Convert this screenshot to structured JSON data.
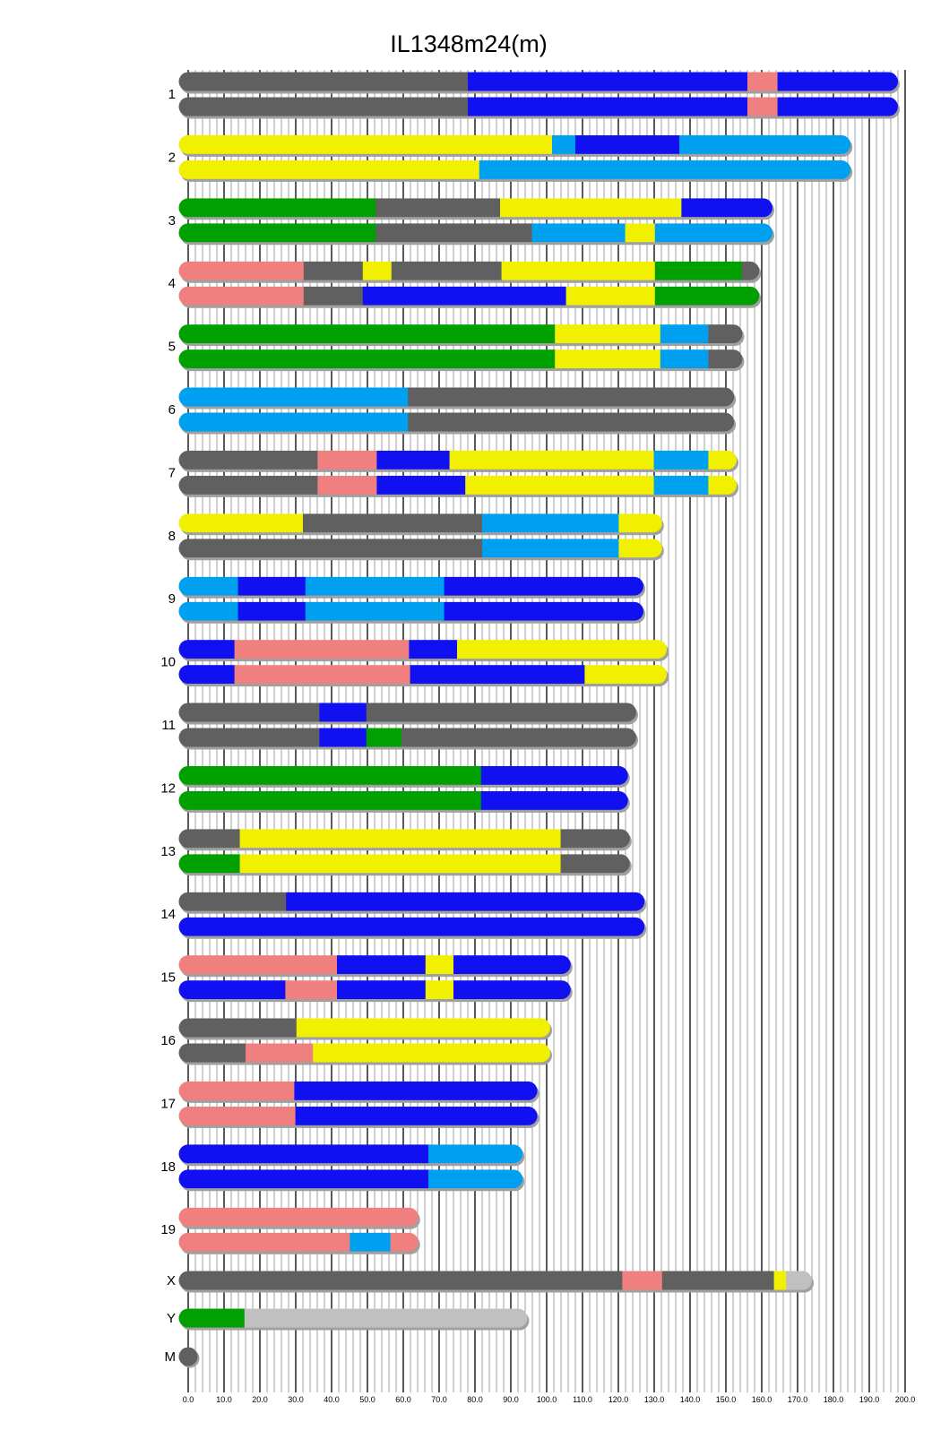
{
  "chart_data": {
    "type": "chromosome-painting",
    "title": "IL1348m24(m)",
    "xlim": [
      0,
      200
    ],
    "x_ticks": [
      "0.0",
      "10.0",
      "20.0",
      "30.0",
      "40.0",
      "50.0",
      "60.0",
      "70.0",
      "80.0",
      "90.0",
      "100.0",
      "110.0",
      "120.0",
      "130.0",
      "140.0",
      "150.0",
      "160.0",
      "170.0",
      "180.0",
      "190.0",
      "200.0"
    ],
    "minor_grid_step": 2,
    "major_grid_step": 10,
    "colors": {
      "g": "#606060",
      "b": "#1010f0",
      "p": "#f08080",
      "y": "#f0f000",
      "G": "#00a000",
      "l": "#00a0f0",
      "s": "#c0c0c0"
    },
    "shadow_color": "#a0a0a0",
    "chromosomes": [
      {
        "label": "1",
        "haplotypes": [
          [
            [
              78,
              "g"
            ],
            [
              156,
              "b"
            ],
            [
              164.4,
              "p"
            ],
            [
              198,
              "b"
            ]
          ],
          [
            [
              78,
              "g"
            ],
            [
              156,
              "b"
            ],
            [
              164.4,
              "p"
            ],
            [
              198,
              "b"
            ]
          ]
        ]
      },
      {
        "label": "2",
        "haplotypes": [
          [
            [
              101.5,
              "y"
            ],
            [
              108,
              "l"
            ],
            [
              137,
              "b"
            ],
            [
              184.8,
              "l"
            ]
          ],
          [
            [
              81.2,
              "y"
            ],
            [
              184.8,
              "l"
            ]
          ]
        ]
      },
      {
        "label": "3",
        "haplotypes": [
          [
            [
              52.3,
              "G"
            ],
            [
              87,
              "g"
            ],
            [
              137.6,
              "y"
            ],
            [
              163,
              "b"
            ]
          ],
          [
            [
              52.3,
              "G"
            ],
            [
              95.9,
              "g"
            ],
            [
              121.9,
              "l"
            ],
            [
              130.2,
              "y"
            ],
            [
              163,
              "l"
            ]
          ]
        ]
      },
      {
        "label": "4",
        "haplotypes": [
          [
            [
              32.2,
              "p"
            ],
            [
              48.7,
              "g"
            ],
            [
              56.7,
              "y"
            ],
            [
              87.4,
              "g"
            ],
            [
              130.2,
              "y"
            ],
            [
              154.4,
              "G"
            ],
            [
              159.3,
              "g"
            ]
          ],
          [
            [
              32.2,
              "p"
            ],
            [
              48.7,
              "g"
            ],
            [
              105.4,
              "b"
            ],
            [
              130.2,
              "y"
            ],
            [
              159.3,
              "G"
            ]
          ]
        ]
      },
      {
        "label": "5",
        "haplotypes": [
          [
            [
              102.3,
              "G"
            ],
            [
              131.7,
              "y"
            ],
            [
              145.1,
              "l"
            ],
            [
              154.6,
              "g"
            ]
          ],
          [
            [
              102.3,
              "G"
            ],
            [
              131.7,
              "y"
            ],
            [
              145.1,
              "l"
            ],
            [
              154.6,
              "g"
            ]
          ]
        ]
      },
      {
        "label": "6",
        "haplotypes": [
          [
            [
              61.3,
              "l"
            ],
            [
              152.3,
              "g"
            ]
          ],
          [
            [
              61.3,
              "l"
            ],
            [
              152.3,
              "g"
            ]
          ]
        ]
      },
      {
        "label": "7",
        "haplotypes": [
          [
            [
              36.1,
              "g"
            ],
            [
              52.6,
              "p"
            ],
            [
              72.9,
              "b"
            ],
            [
              129.9,
              "y"
            ],
            [
              145.1,
              "l"
            ],
            [
              153,
              "y"
            ]
          ],
          [
            [
              36.1,
              "g"
            ],
            [
              52.6,
              "p"
            ],
            [
              77.3,
              "b"
            ],
            [
              129.9,
              "y"
            ],
            [
              145.1,
              "l"
            ],
            [
              153,
              "y"
            ]
          ]
        ]
      },
      {
        "label": "8",
        "haplotypes": [
          [
            [
              32,
              "y"
            ],
            [
              82,
              "g"
            ],
            [
              120.1,
              "l"
            ],
            [
              132.2,
              "y"
            ]
          ],
          [
            [
              82,
              "g"
            ],
            [
              120.1,
              "l"
            ],
            [
              132.2,
              "y"
            ]
          ]
        ]
      },
      {
        "label": "9",
        "haplotypes": [
          [
            [
              13.9,
              "l"
            ],
            [
              32.7,
              "b"
            ],
            [
              71.4,
              "l"
            ],
            [
              127,
              "b"
            ]
          ],
          [
            [
              13.9,
              "l"
            ],
            [
              32.7,
              "b"
            ],
            [
              71.4,
              "l"
            ],
            [
              127,
              "b"
            ]
          ]
        ]
      },
      {
        "label": "10",
        "haplotypes": [
          [
            [
              12.9,
              "b"
            ],
            [
              61.6,
              "p"
            ],
            [
              75,
              "b"
            ],
            [
              133.5,
              "y"
            ]
          ],
          [
            [
              12.9,
              "b"
            ],
            [
              61.9,
              "p"
            ],
            [
              110.6,
              "b"
            ],
            [
              133.5,
              "y"
            ]
          ]
        ]
      },
      {
        "label": "11",
        "haplotypes": [
          [
            [
              36.6,
              "g"
            ],
            [
              49.7,
              "b"
            ],
            [
              125,
              "g"
            ]
          ],
          [
            [
              36.6,
              "g"
            ],
            [
              49.7,
              "b"
            ],
            [
              59.5,
              "G"
            ],
            [
              125,
              "g"
            ]
          ]
        ]
      },
      {
        "label": "12",
        "haplotypes": [
          [
            [
              81.7,
              "G"
            ],
            [
              122.7,
              "b"
            ]
          ],
          [
            [
              81.7,
              "G"
            ],
            [
              122.7,
              "b"
            ]
          ]
        ]
      },
      {
        "label": "13",
        "haplotypes": [
          [
            [
              14.4,
              "g"
            ],
            [
              103.9,
              "y"
            ],
            [
              123.2,
              "g"
            ]
          ],
          [
            [
              14.4,
              "G"
            ],
            [
              103.9,
              "y"
            ],
            [
              123.2,
              "g"
            ]
          ]
        ]
      },
      {
        "label": "14",
        "haplotypes": [
          [
            [
              27.3,
              "g"
            ],
            [
              127.3,
              "b"
            ]
          ],
          [
            [
              127.3,
              "b"
            ]
          ]
        ]
      },
      {
        "label": "15",
        "haplotypes": [
          [
            [
              41.5,
              "p"
            ],
            [
              66.2,
              "b"
            ],
            [
              74,
              "y"
            ],
            [
              106.7,
              "b"
            ]
          ],
          [
            [
              27.1,
              "b"
            ],
            [
              41.5,
              "p"
            ],
            [
              66.2,
              "b"
            ],
            [
              74,
              "y"
            ],
            [
              106.7,
              "b"
            ]
          ]
        ]
      },
      {
        "label": "16",
        "haplotypes": [
          [
            [
              30.2,
              "g"
            ],
            [
              101,
              "y"
            ]
          ],
          [
            [
              16,
              "g"
            ],
            [
              34.8,
              "p"
            ],
            [
              101,
              "y"
            ]
          ]
        ]
      },
      {
        "label": "17",
        "haplotypes": [
          [
            [
              29.6,
              "p"
            ],
            [
              97.4,
              "b"
            ]
          ],
          [
            [
              29.9,
              "p"
            ],
            [
              97.4,
              "b"
            ]
          ]
        ]
      },
      {
        "label": "18",
        "haplotypes": [
          [
            [
              67,
              "b"
            ],
            [
              93.3,
              "l"
            ]
          ],
          [
            [
              67,
              "b"
            ],
            [
              93.3,
              "l"
            ]
          ]
        ]
      },
      {
        "label": "19",
        "haplotypes": [
          [
            [
              64.2,
              "p"
            ]
          ],
          [
            [
              45.1,
              "p"
            ],
            [
              56.4,
              "l"
            ],
            [
              64.2,
              "p"
            ]
          ]
        ]
      },
      {
        "label": "X",
        "haplotypes": [
          [
            [
              121.1,
              "g"
            ],
            [
              132.2,
              "p"
            ],
            [
              163.4,
              "g"
            ],
            [
              166.8,
              "y"
            ],
            [
              174,
              "s"
            ]
          ]
        ]
      },
      {
        "label": "Y",
        "haplotypes": [
          [
            [
              15.7,
              "G"
            ],
            [
              94.6,
              "s"
            ]
          ]
        ]
      },
      {
        "label": "M",
        "haplotypes": [
          [
            [
              0.5,
              "g"
            ]
          ]
        ]
      }
    ]
  }
}
